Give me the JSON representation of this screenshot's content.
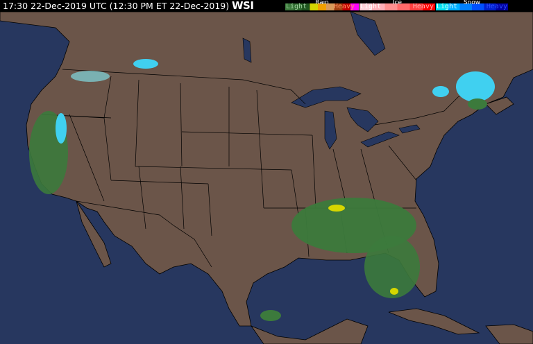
{
  "header": {
    "timestamp": "17:30 22-Dec-2019 UTC  (12:30 PM ET 22-Dec-2019)",
    "logo": "WSI",
    "legend": [
      {
        "title": "Rain",
        "light": "Light",
        "heavy": "Heavy",
        "colors": [
          "#3c7a3c",
          "#2f6a2f",
          "#1f541f",
          "#d6d600",
          "#f0a000",
          "#d89a5a",
          "#a04010",
          "#c00000",
          "#ff00ff"
        ]
      },
      {
        "title": "Ice",
        "light": "Light",
        "heavy": "Heavy",
        "colors": [
          "#ffd0d8",
          "#ffb0b8",
          "#ff9090",
          "#ff6a6a",
          "#ff4040",
          "#ff0000"
        ]
      },
      {
        "title": "Snow",
        "light": "Light",
        "heavy": "Heavy",
        "colors": [
          "#00e0f0",
          "#00b0ff",
          "#0080ff",
          "#0050ff",
          "#0020d0",
          "#0000a0"
        ]
      }
    ]
  },
  "map": {
    "colors": {
      "ocean": "#27375f",
      "land": "#6b5549",
      "borders": "#000000",
      "lakes": "#27375f"
    }
  }
}
